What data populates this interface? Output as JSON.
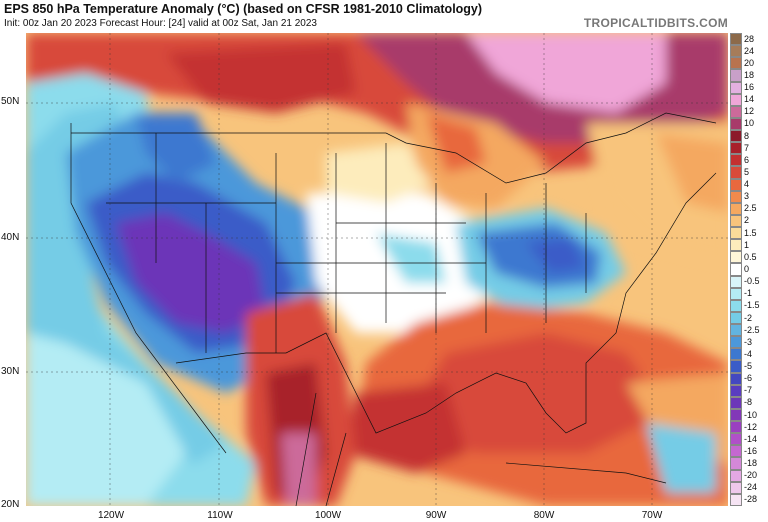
{
  "header": {
    "title": "EPS 850 hPa Temperature Anomaly (°C) (based on CFSR 1981-2010 Climatology)",
    "subtitle": "Init: 00z Jan 20 2023   Forecast Hour: [24]   valid at 00z Sat, Jan 21 2023",
    "brand": "TROPICALTIDBITS.COM"
  },
  "axes": {
    "lat_labels": [
      "50N",
      "40N",
      "30N",
      "20N"
    ],
    "lon_labels": [
      "120W",
      "110W",
      "100W",
      "90W",
      "80W",
      "70W"
    ]
  },
  "colorbar": {
    "levels": [
      "28",
      "24",
      "20",
      "18",
      "16",
      "14",
      "12",
      "10",
      "8",
      "7",
      "6",
      "5",
      "4",
      "3",
      "2.5",
      "2",
      "1.5",
      "1",
      "0.5",
      "0",
      "-0.5",
      "-1",
      "-1.5",
      "-2",
      "-2.5",
      "-3",
      "-4",
      "-5",
      "-6",
      "-7",
      "-8",
      "-10",
      "-12",
      "-14",
      "-16",
      "-18",
      "-20",
      "-24",
      "-28"
    ],
    "colors": [
      "#8c6a4a",
      "#a67c5a",
      "#b8734f",
      "#c8a0c8",
      "#e3b0e0",
      "#f0a6d8",
      "#cc6a9a",
      "#a83a6a",
      "#8c1a2a",
      "#a8202a",
      "#c43030",
      "#d84a3a",
      "#e8683e",
      "#f08a4c",
      "#f4a860",
      "#f8c47c",
      "#fbdc9a",
      "#fdecbc",
      "#fff6d8",
      "#ffffff",
      "#d8f4f8",
      "#b4ecf4",
      "#8cdcec",
      "#74cce6",
      "#62b4e0",
      "#4c98da",
      "#3c78d0",
      "#3a5cc8",
      "#4448c0",
      "#5a3cc0",
      "#6c36b8",
      "#8238b8",
      "#9a40c0",
      "#b050c8",
      "#c468d0",
      "#d488d8",
      "#e4a8e4",
      "#eec8ec",
      "#f6e4f4"
    ]
  },
  "map_layers": {
    "base_fill_name": "light-cyan",
    "regions": [
      "pacific-northwest-blue",
      "great-basin-purple",
      "rockies-blue",
      "northeast-cold-pool",
      "southeast-warm",
      "mexico-warm",
      "canada-warm-magenta",
      "gulf-warm"
    ]
  }
}
